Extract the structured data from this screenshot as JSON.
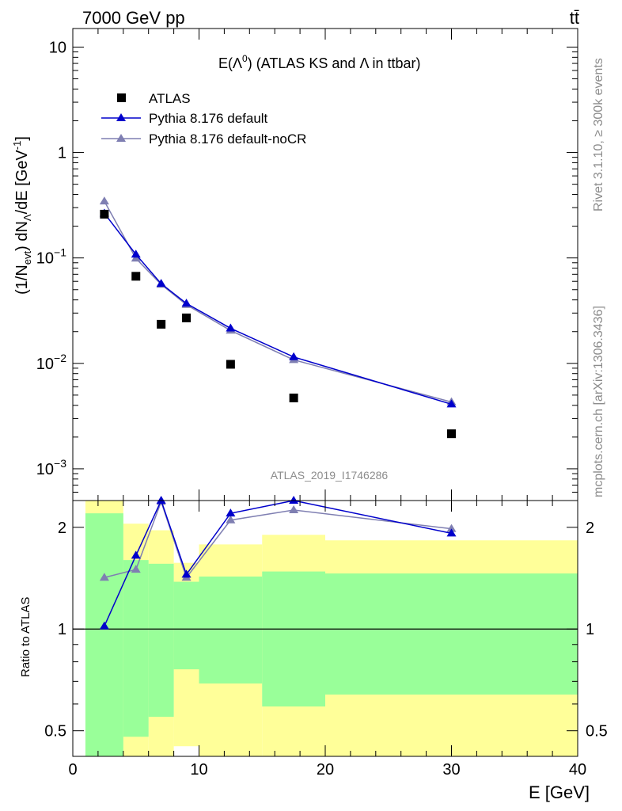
{
  "header": {
    "left": "7000 GeV pp",
    "right": "tt̄"
  },
  "side_labels": {
    "rivet": "Rivet 3.1.10, ≥ 300k events",
    "mcplots": "mcplots.cern.ch [arXiv:1306.3436]"
  },
  "watermark": "ATLAS_2019_I1746286",
  "colors": {
    "atlas": "#000000",
    "pythia_default": "#0000cc",
    "pythia_nocr": "#7f7fb2",
    "band_green": "#99ff99",
    "band_yellow": "#ffff99"
  },
  "chart_data": [
    {
      "type": "scatter",
      "panel": "main",
      "title_prefix": "E(",
      "title_sym": "Λ",
      "title_sup": "0",
      "title_suffix": ") (ATLAS KS and Λ in ttbar)",
      "ylabel": "(1/N_evt) dN_Λ/dE [GeV⁻¹]",
      "yscale": "log",
      "xlim": [
        0,
        40
      ],
      "ylim": [
        0.0005,
        15
      ],
      "y_ticks": [
        {
          "value": 0.001,
          "base": "10",
          "exp": "−3"
        },
        {
          "value": 0.01,
          "base": "10",
          "exp": "−2"
        },
        {
          "value": 0.1,
          "base": "10",
          "exp": "−1"
        },
        {
          "value": 1,
          "base": "1",
          "exp": ""
        },
        {
          "value": 10,
          "base": "10",
          "exp": ""
        }
      ],
      "legend_position": "top-left",
      "series": [
        {
          "name": "ATLAS",
          "marker": "square",
          "x": [
            2.5,
            5,
            7,
            9,
            12.5,
            17.5,
            30
          ],
          "y": [
            0.26,
            0.067,
            0.0235,
            0.027,
            0.0098,
            0.0047,
            0.00215
          ]
        },
        {
          "name": "Pythia 8.176 default",
          "marker": "triangle",
          "x": [
            2.5,
            5,
            7,
            9,
            12.5,
            17.5,
            30
          ],
          "y": [
            0.265,
            0.108,
            0.057,
            0.037,
            0.0215,
            0.0115,
            0.0041
          ]
        },
        {
          "name": "Pythia 8.176 default-noCR",
          "marker": "triangle",
          "x": [
            2.5,
            5,
            7,
            9,
            12.5,
            17.5,
            30
          ],
          "y": [
            0.345,
            0.099,
            0.056,
            0.036,
            0.0205,
            0.0108,
            0.0043
          ]
        }
      ]
    },
    {
      "type": "line",
      "panel": "ratio",
      "ylabel": "Ratio to ATLAS",
      "xlabel": "E [GeV]",
      "yscale": "log",
      "xlim": [
        0,
        40
      ],
      "ylim": [
        0.42,
        2.4
      ],
      "x_ticks": [
        0,
        10,
        20,
        30,
        40
      ],
      "y_ticks": [
        0.5,
        1,
        2
      ],
      "reference_line": 1,
      "bins": [
        {
          "lo": 1,
          "hi": 4,
          "green": [
            0.4,
            2.2
          ],
          "yellow": [
            0.4,
            2.4
          ]
        },
        {
          "lo": 4,
          "hi": 6,
          "green": [
            0.48,
            1.6
          ],
          "yellow": [
            0.4,
            2.05
          ]
        },
        {
          "lo": 6,
          "hi": 8,
          "green": [
            0.55,
            1.56
          ],
          "yellow": [
            0.4,
            1.96
          ]
        },
        {
          "lo": 8,
          "hi": 10,
          "green": [
            0.76,
            1.38
          ],
          "yellow": [
            0.45,
            1.57
          ]
        },
        {
          "lo": 10,
          "hi": 15,
          "green": [
            0.69,
            1.43
          ],
          "yellow": [
            0.4,
            1.78
          ]
        },
        {
          "lo": 15,
          "hi": 20,
          "green": [
            0.59,
            1.48
          ],
          "yellow": [
            0.4,
            1.9
          ]
        },
        {
          "lo": 20,
          "hi": 40,
          "green": [
            0.64,
            1.46
          ],
          "yellow": [
            0.4,
            1.83
          ]
        }
      ],
      "series": [
        {
          "name": "Pythia 8.176 default",
          "marker": "triangle",
          "x": [
            2.5,
            5,
            7,
            9,
            12.5,
            17.5,
            30
          ],
          "y": [
            1.02,
            1.65,
            2.4,
            1.45,
            2.2,
            2.4,
            1.92
          ]
        },
        {
          "name": "Pythia 8.176 default-noCR",
          "marker": "triangle",
          "x": [
            2.5,
            5,
            7,
            9,
            12.5,
            17.5,
            30
          ],
          "y": [
            1.42,
            1.5,
            2.38,
            1.42,
            2.1,
            2.25,
            1.98
          ]
        }
      ]
    }
  ]
}
